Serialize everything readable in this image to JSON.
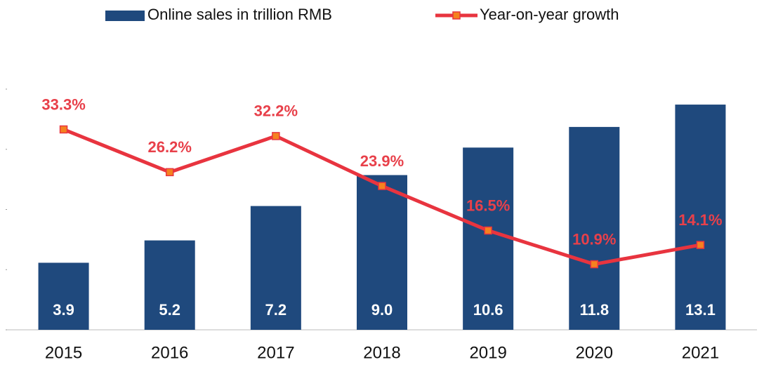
{
  "chart_data": {
    "type": "bar",
    "categories": [
      "2015",
      "2016",
      "2017",
      "2018",
      "2019",
      "2020",
      "2021"
    ],
    "series": [
      {
        "name": "Online sales in trillion RMB",
        "type": "bar",
        "color": "#1f497d",
        "values": [
          3.9,
          5.2,
          7.2,
          9.0,
          10.6,
          11.8,
          13.1
        ],
        "value_labels": [
          "3.9",
          "5.2",
          "7.2",
          "9.0",
          "10.6",
          "11.8",
          "13.1"
        ]
      },
      {
        "name": "Year-on-year growth",
        "type": "line",
        "axis": "y2",
        "color": "#e8343f",
        "marker_color": "#f5821f",
        "values": [
          33.3,
          26.2,
          32.2,
          23.9,
          16.5,
          10.9,
          14.1
        ],
        "value_labels": [
          "33.3%",
          "26.2%",
          "32.2%",
          "23.9%",
          "16.5%",
          "10.9%",
          "14.1%"
        ]
      }
    ],
    "ylim": [
      0,
      14
    ],
    "yticks": [
      0,
      3.5,
      7,
      10.5,
      14
    ],
    "y2lim": [
      0,
      40
    ],
    "legend": "top"
  }
}
